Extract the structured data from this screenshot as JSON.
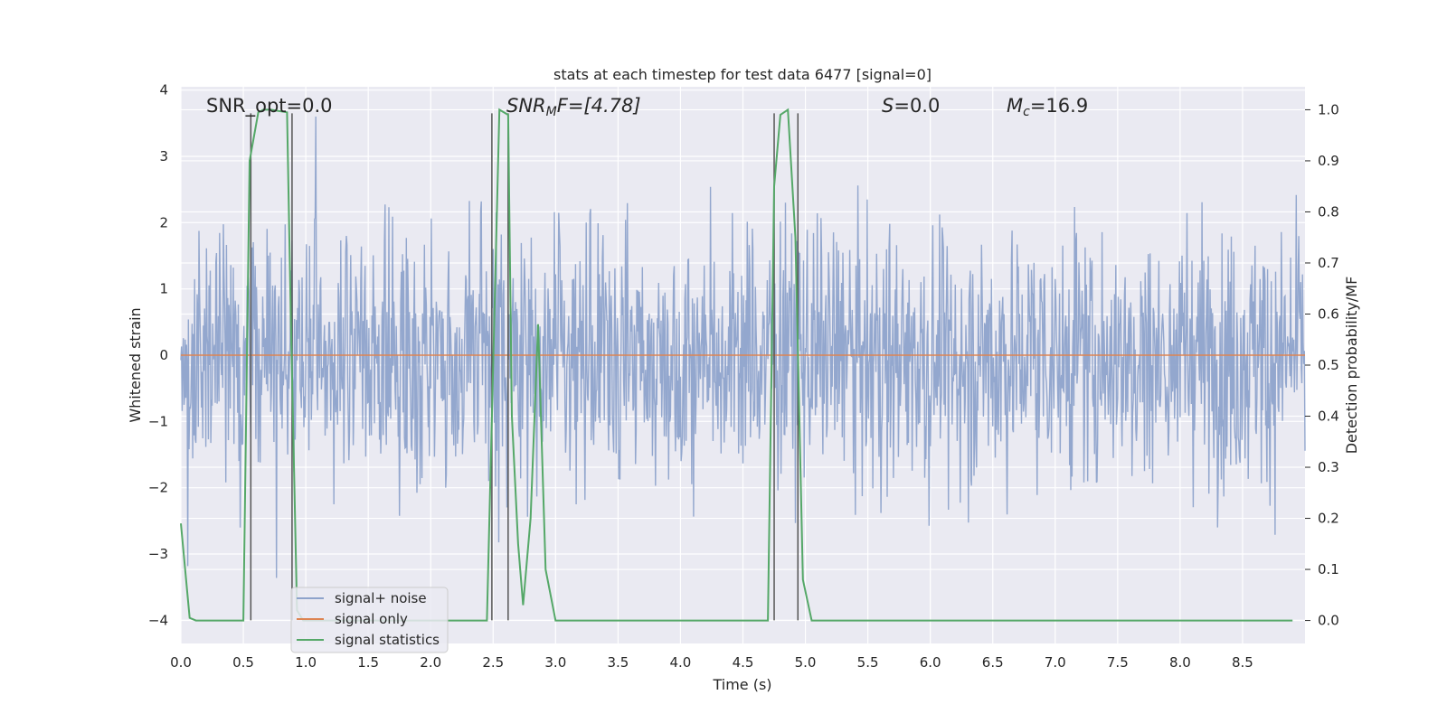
{
  "chart_data": {
    "type": "line",
    "title": "stats at each timestep for test data 6477 [signal=0]",
    "xlabel": "Time (s)",
    "ylabel": "Whitened strain",
    "ylabel_right": "Detection probability/MF",
    "xlim": [
      0,
      9.0
    ],
    "ylim": [
      -4.35,
      4.05
    ],
    "ylim_right": [
      -0.045,
      1.045
    ],
    "x_ticks": [
      "0.0",
      "0.5",
      "1.0",
      "1.5",
      "2.0",
      "2.5",
      "3.0",
      "3.5",
      "4.0",
      "4.5",
      "5.0",
      "5.5",
      "6.0",
      "6.5",
      "7.0",
      "7.5",
      "8.0",
      "8.5"
    ],
    "y_ticks": [
      "4",
      "3",
      "2",
      "1",
      "0",
      "−1",
      "−2",
      "−3",
      "−4"
    ],
    "y_ticks_right": [
      "1.0",
      "0.9",
      "0.8",
      "0.7",
      "0.6",
      "0.5",
      "0.4",
      "0.3",
      "0.2",
      "0.1",
      "0.0"
    ],
    "grid": true,
    "legend_position": "lower-left",
    "colors": {
      "noise": "#8ea3cb",
      "signal_only": "#dd8452",
      "stats": "#55a868",
      "vlines": "#555555",
      "background": "#eaeaf2"
    },
    "annotations": {
      "snr_opt": "SNR_opt=0.0",
      "snr_mf_label": "SNR",
      "snr_mf_sub": "M",
      "snr_mf_rest": "F=[4.78]",
      "s_label": "S",
      "s_rest": "=0.0",
      "mc_label": "M",
      "mc_sub": "c",
      "mc_rest": "=16.9"
    },
    "series": [
      {
        "name": "signal+ noise",
        "kind": "noise",
        "description_values": "whitened strain noise, roughly within -2.5..2.5 with spikes to about +3.6/-3.9",
        "y_range_typical": [
          -2.0,
          2.0
        ]
      },
      {
        "name": "signal only",
        "kind": "flat",
        "y": 0.0
      },
      {
        "name": "signal statistics",
        "kind": "line",
        "axis": "right",
        "x": [
          0.0,
          0.07,
          0.12,
          0.3,
          0.5,
          0.55,
          0.62,
          0.66,
          0.72,
          0.85,
          0.88,
          0.93,
          0.98,
          1.05,
          1.5,
          2.0,
          2.45,
          2.5,
          2.55,
          2.62,
          2.65,
          2.7,
          2.74,
          2.8,
          2.86,
          2.92,
          3.0,
          3.5,
          4.0,
          4.5,
          4.7,
          4.75,
          4.8,
          4.86,
          4.92,
          4.98,
          5.05,
          5.5,
          6.0,
          7.0,
          8.0,
          8.9
        ],
        "y": [
          0.19,
          0.005,
          0.0,
          0.0,
          0.0,
          0.9,
          0.995,
          1.0,
          1.0,
          0.995,
          0.6,
          0.02,
          0.0,
          0.0,
          0.0,
          0.0,
          0.0,
          0.5,
          1.0,
          0.99,
          0.4,
          0.15,
          0.03,
          0.2,
          0.58,
          0.1,
          0.0,
          0.0,
          0.0,
          0.0,
          0.0,
          0.85,
          0.99,
          1.0,
          0.75,
          0.08,
          0.0,
          0.0,
          0.0,
          0.0,
          0.0,
          0.0
        ]
      }
    ],
    "vlines_x": [
      0.56,
      0.89,
      2.49,
      2.62,
      4.75,
      4.94
    ],
    "vline_ylim": [
      -4.0,
      3.65
    ],
    "legend": {
      "items": [
        "signal+ noise",
        "signal only",
        "signal statistics"
      ]
    }
  }
}
